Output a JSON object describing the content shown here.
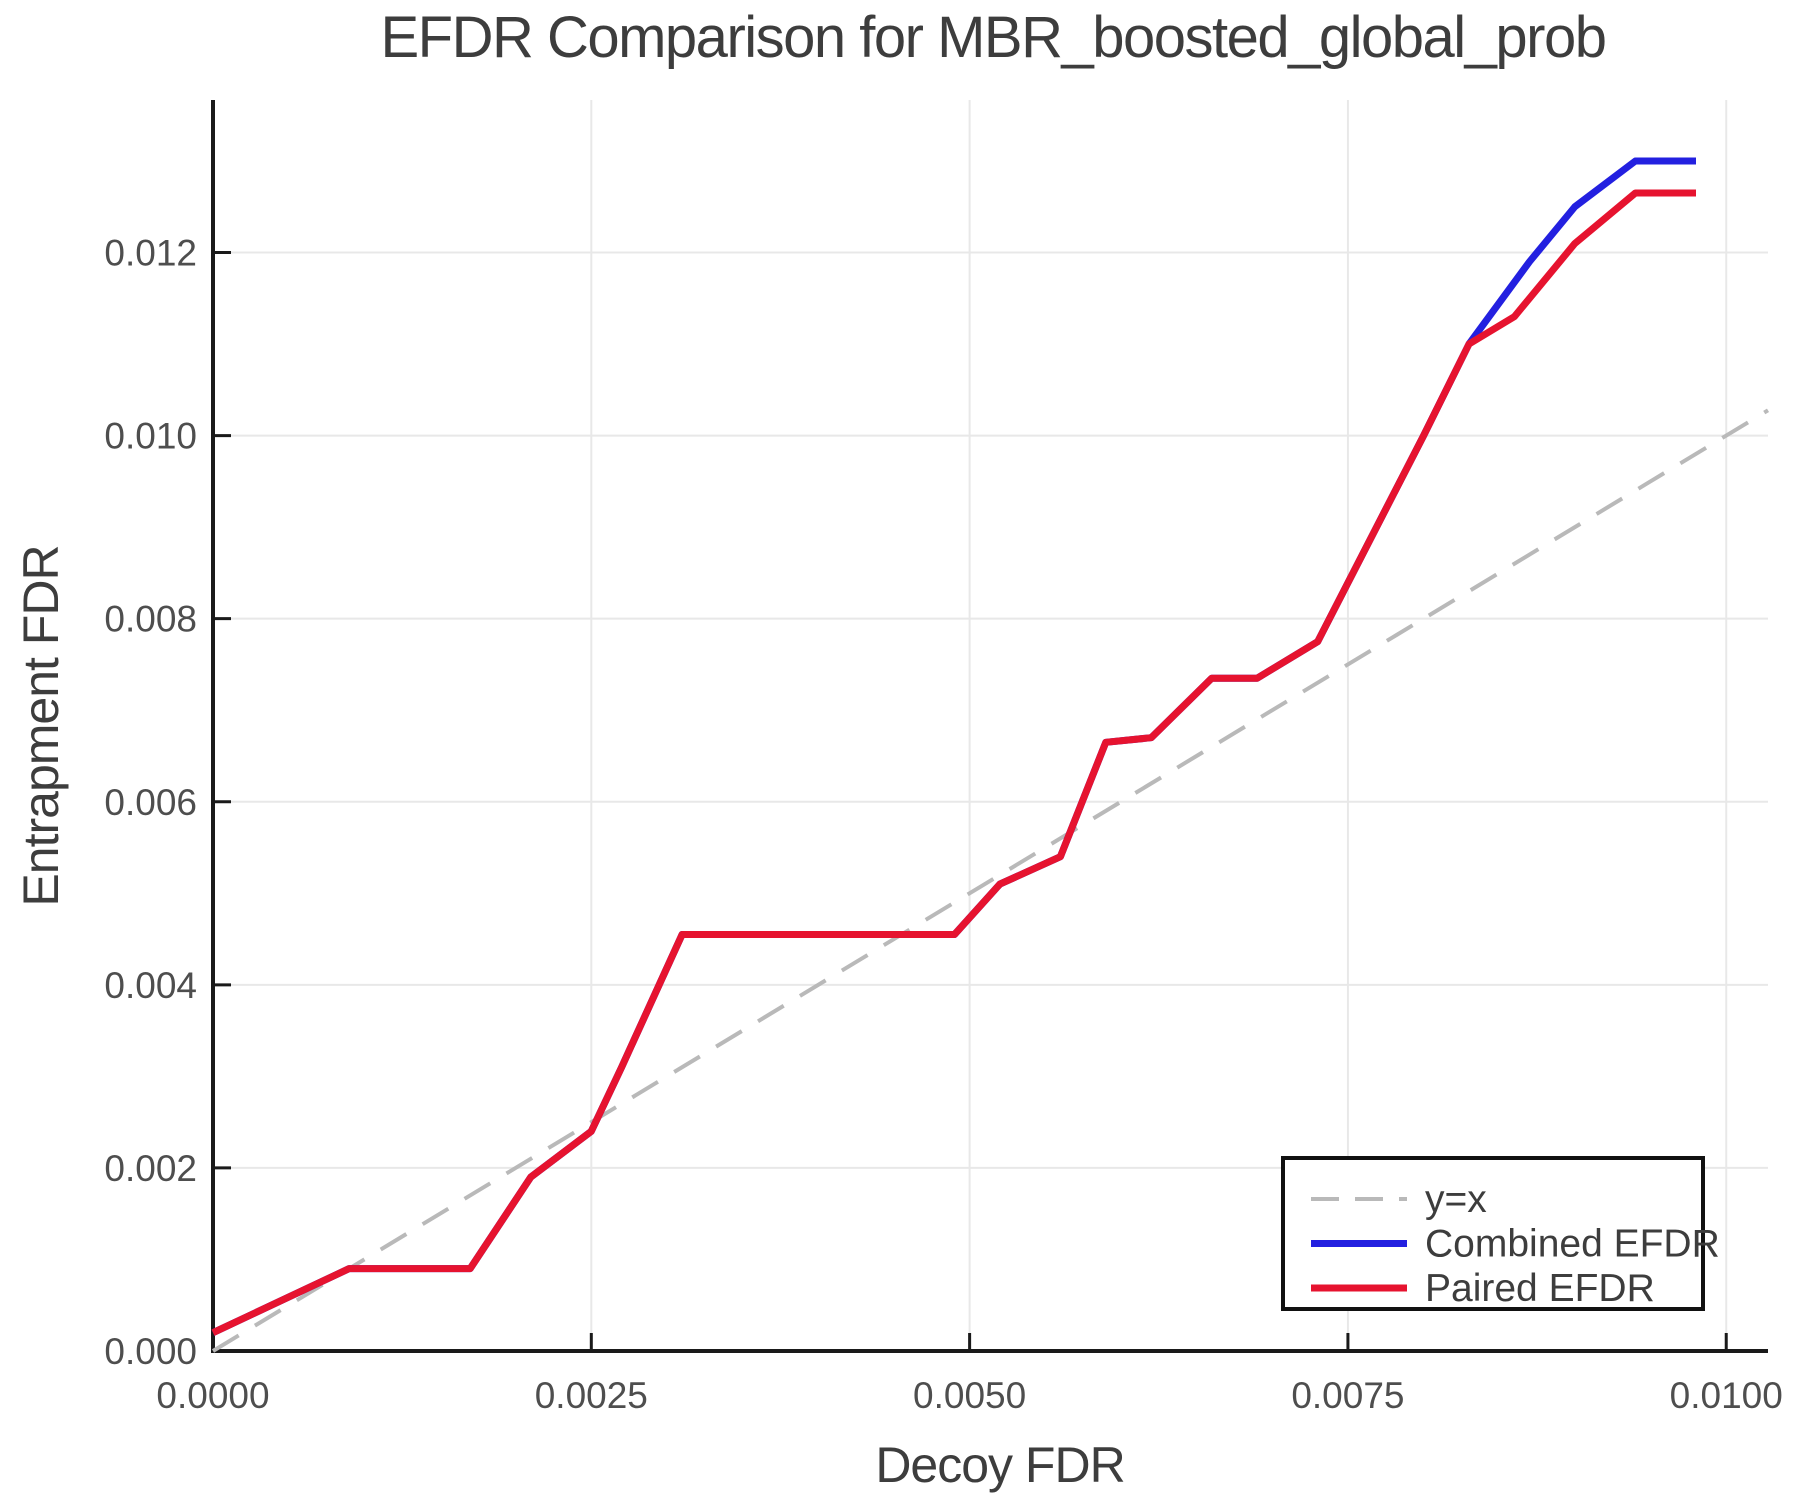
{
  "page": {
    "background": "#ffffff"
  },
  "chart_data": {
    "type": "line",
    "title": "EFDR Comparison for MBR_boosted_global_prob",
    "xlabel": "Decoy FDR",
    "ylabel": "Entrapment FDR",
    "xlim": [
      0.0,
      0.010276
    ],
    "ylim": [
      0.0,
      0.013666
    ],
    "grid": true,
    "x_ticks": [
      0.0,
      0.0025,
      0.005,
      0.0075,
      0.01
    ],
    "x_tick_labels": [
      "0.0000",
      "0.0025",
      "0.0050",
      "0.0075",
      "0.0100"
    ],
    "y_ticks": [
      0.0,
      0.002,
      0.004,
      0.006,
      0.008,
      0.01,
      0.012
    ],
    "y_tick_labels": [
      "0.000",
      "0.002",
      "0.004",
      "0.006",
      "0.008",
      "0.010",
      "0.012"
    ],
    "legend_position": "bottom-right",
    "series": [
      {
        "name": "y=x",
        "color": "#b9b9b9",
        "dashed": true,
        "width": 4,
        "points": [
          [
            0.0,
            0.0
          ],
          [
            0.010276,
            0.010276
          ]
        ]
      },
      {
        "name": "Combined EFDR",
        "color": "#2320e0",
        "dashed": false,
        "width": 7,
        "points": [
          [
            0.0,
            0.0002
          ],
          [
            0.0009,
            0.0009
          ],
          [
            0.0017,
            0.0009
          ],
          [
            0.0021,
            0.0019
          ],
          [
            0.0025,
            0.0024
          ],
          [
            0.0027,
            0.0031
          ],
          [
            0.0031,
            0.00455
          ],
          [
            0.0049,
            0.00455
          ],
          [
            0.0052,
            0.0051
          ],
          [
            0.0056,
            0.0054
          ],
          [
            0.0059,
            0.00665
          ],
          [
            0.0062,
            0.0067
          ],
          [
            0.0066,
            0.00735
          ],
          [
            0.0069,
            0.00735
          ],
          [
            0.0073,
            0.00775
          ],
          [
            0.008,
            0.01
          ],
          [
            0.0083,
            0.011
          ],
          [
            0.0087,
            0.0119
          ],
          [
            0.009,
            0.0125
          ],
          [
            0.0094,
            0.013
          ],
          [
            0.0098,
            0.013
          ]
        ]
      },
      {
        "name": "Paired EFDR",
        "color": "#e6132f",
        "dashed": false,
        "width": 7,
        "points": [
          [
            0.0,
            0.0002
          ],
          [
            0.0009,
            0.0009
          ],
          [
            0.0017,
            0.0009
          ],
          [
            0.0021,
            0.0019
          ],
          [
            0.0025,
            0.0024
          ],
          [
            0.0027,
            0.0031
          ],
          [
            0.0031,
            0.00455
          ],
          [
            0.0049,
            0.00455
          ],
          [
            0.0052,
            0.0051
          ],
          [
            0.0056,
            0.0054
          ],
          [
            0.0059,
            0.00665
          ],
          [
            0.0062,
            0.0067
          ],
          [
            0.0066,
            0.00735
          ],
          [
            0.0069,
            0.00735
          ],
          [
            0.0073,
            0.00775
          ],
          [
            0.008,
            0.01
          ],
          [
            0.0083,
            0.011
          ],
          [
            0.0086,
            0.0113
          ],
          [
            0.009,
            0.0121
          ],
          [
            0.0094,
            0.01265
          ],
          [
            0.0098,
            0.01265
          ]
        ]
      }
    ],
    "styles": {
      "grid_color": "#e8e8e8",
      "spine_color": "#1a1a1a",
      "tick_color": "#1a1a1a",
      "title_color": "#3d3d3d",
      "axis_label_color": "#3d3d3d",
      "tick_label_color": "#4e4e4e",
      "legend_bg": "#ffffff",
      "legend_border": "#111111",
      "legend_text_color": "#3d3d3d"
    }
  }
}
